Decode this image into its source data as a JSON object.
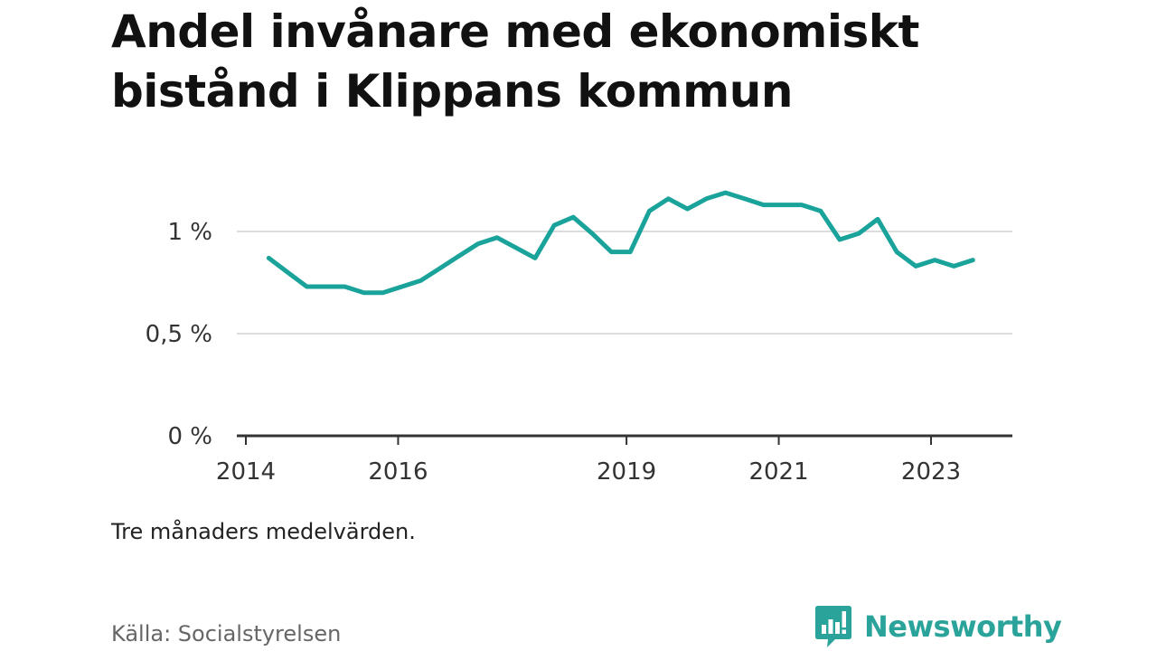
{
  "header": {
    "title": "Andel invånare med ekonomiskt bistånd i Klippans kommun"
  },
  "footer": {
    "note": "Tre månaders medelvärden.",
    "source": "Källa: Socialstyrelsen",
    "brand": "Newsworthy"
  },
  "colors": {
    "line": "#1aa39a",
    "brand": "#2aa39a",
    "grid": "#dddddd",
    "axis": "#333333"
  },
  "chart_data": {
    "type": "line",
    "title": "Andel invånare med ekonomiskt bistånd i Klippans kommun",
    "xlabel": "",
    "ylabel": "",
    "ylim": [
      0,
      1.2
    ],
    "xlim": [
      2013.9,
      2024.1
    ],
    "grid": "horizontal",
    "legend": "none",
    "y_ticks": [
      {
        "value": 0,
        "label": "0 %"
      },
      {
        "value": 0.5,
        "label": "0,5 %"
      },
      {
        "value": 1,
        "label": "1 %"
      }
    ],
    "x_ticks": [
      {
        "value": 2014,
        "label": "2014"
      },
      {
        "value": 2016,
        "label": "2016"
      },
      {
        "value": 2019,
        "label": "2019"
      },
      {
        "value": 2021,
        "label": "2021"
      },
      {
        "value": 2023,
        "label": "2023"
      }
    ],
    "series": [
      {
        "x": [
          2014.3,
          2014.55,
          2014.8,
          2015.05,
          2015.3,
          2015.55,
          2015.8,
          2016.05,
          2016.3,
          2016.55,
          2016.8,
          2017.05,
          2017.3,
          2017.55,
          2017.8,
          2018.05,
          2018.3,
          2018.55,
          2018.8,
          2019.05,
          2019.3,
          2019.55,
          2019.8,
          2020.05,
          2020.3,
          2020.55,
          2020.8,
          2021.05,
          2021.3,
          2021.55,
          2021.8,
          2022.05,
          2022.3,
          2022.55,
          2022.8,
          2023.05,
          2023.3,
          2023.55
        ],
        "values": [
          0.87,
          0.8,
          0.73,
          0.73,
          0.73,
          0.7,
          0.7,
          0.73,
          0.76,
          0.82,
          0.88,
          0.94,
          0.97,
          0.92,
          0.87,
          1.03,
          1.07,
          0.99,
          0.9,
          0.9,
          1.1,
          1.16,
          1.11,
          1.16,
          1.19,
          1.16,
          1.13,
          1.13,
          1.13,
          1.1,
          0.96,
          0.99,
          1.06,
          0.9,
          0.83,
          0.86,
          0.83,
          0.86
        ]
      }
    ]
  }
}
